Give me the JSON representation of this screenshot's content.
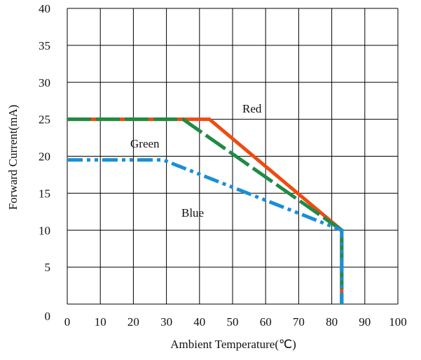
{
  "chart_data": {
    "type": "line",
    "xlabel": "Ambient Temperature(℃)",
    "ylabel": "Forward Current(mA)",
    "xlim": [
      0,
      100
    ],
    "ylim": [
      0,
      40
    ],
    "x_ticks": [
      "0",
      "10",
      "20",
      "30",
      "40",
      "50",
      "60",
      "70",
      "80",
      "90",
      "100"
    ],
    "y_ticks": [
      "0",
      "5",
      "10",
      "15",
      "20",
      "25",
      "30",
      "35",
      "40"
    ],
    "grid": true,
    "series": [
      {
        "name": "Red",
        "color": "#ee4b12",
        "dash": "solid",
        "points": [
          [
            0,
            25
          ],
          [
            43,
            25
          ],
          [
            83,
            10
          ],
          [
            83,
            0
          ]
        ]
      },
      {
        "name": "Green",
        "color": "#1e8b45",
        "dash": "long-dash",
        "points": [
          [
            0,
            25
          ],
          [
            35,
            25
          ],
          [
            83,
            10
          ],
          [
            83,
            0
          ]
        ]
      },
      {
        "name": "Blue",
        "color": "#1a8fd6",
        "dash": "dash-dot-dot",
        "points": [
          [
            0,
            19.5
          ],
          [
            29,
            19.5
          ],
          [
            83,
            10
          ],
          [
            83,
            0
          ]
        ]
      }
    ]
  }
}
